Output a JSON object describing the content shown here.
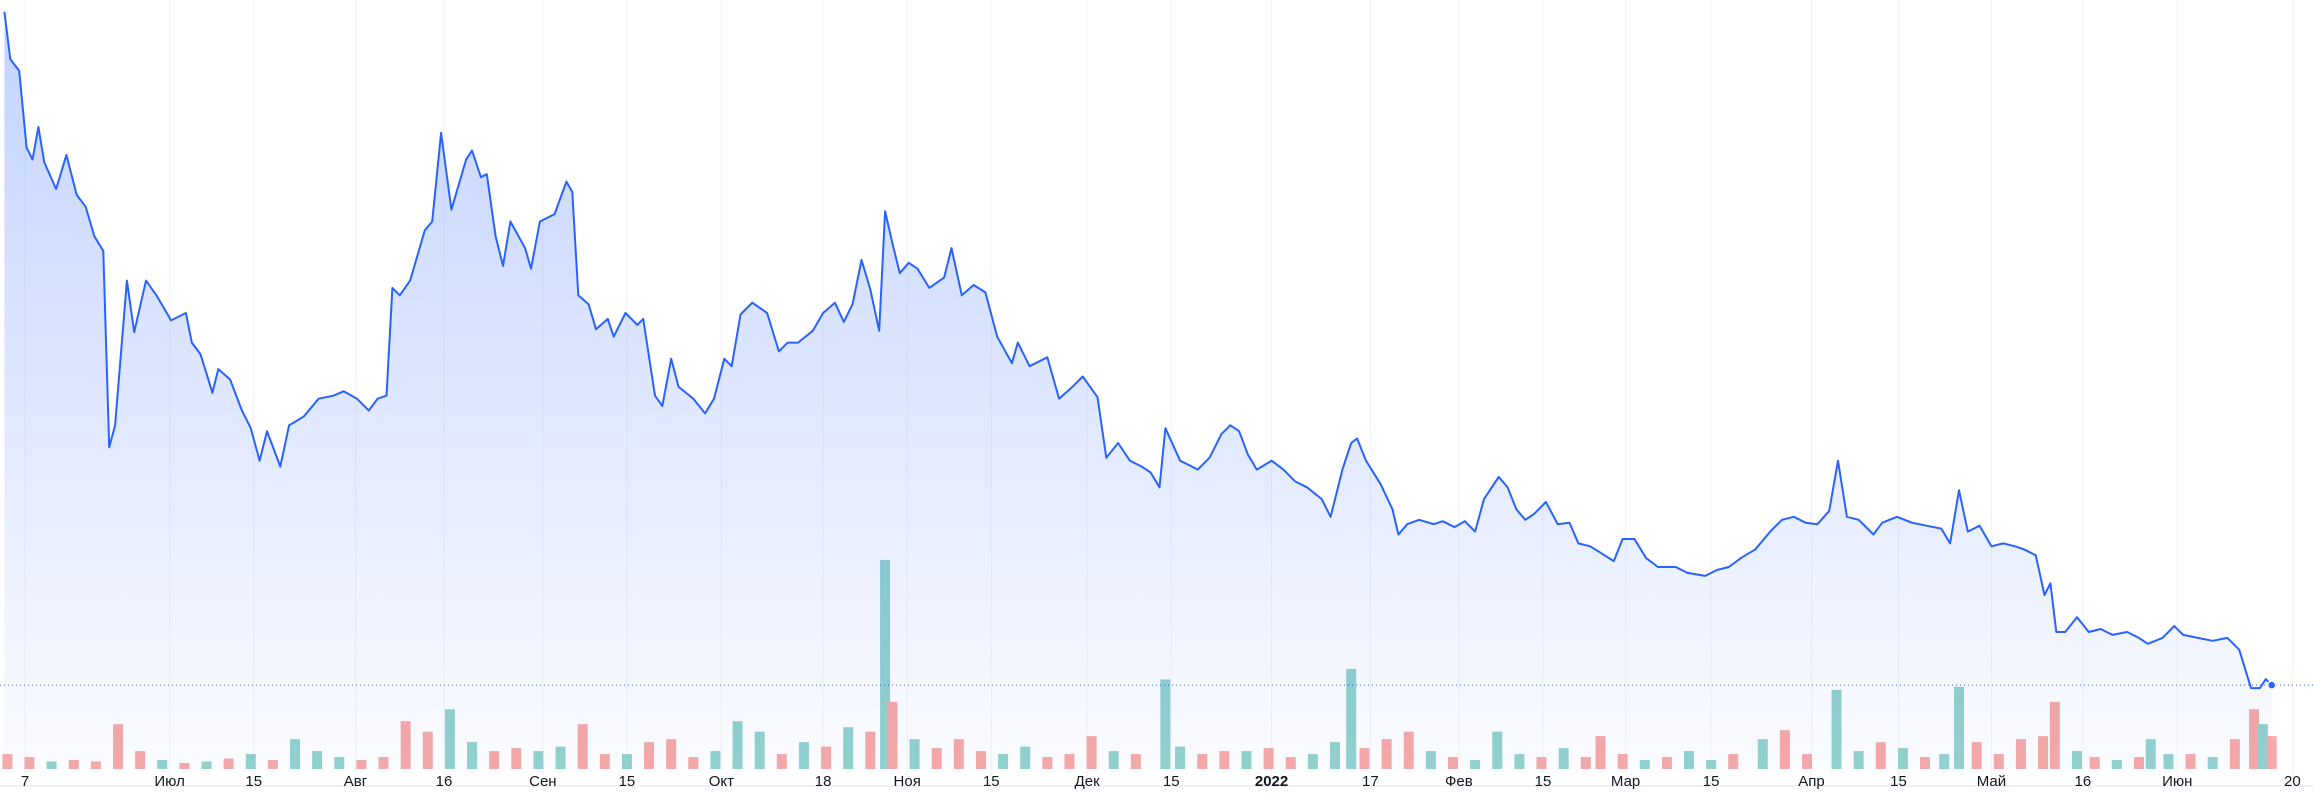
{
  "chart_data": [
    {
      "type": "line",
      "color": "#2962ff",
      "fill": "#2962ff",
      "last_price_line": true,
      "xlim": [
        0,
        1568
      ],
      "ylim": [
        -5,
        465
      ],
      "x": [
        3,
        7,
        13,
        18,
        22,
        26,
        30,
        38,
        45,
        52,
        58,
        64,
        70,
        74,
        78,
        86,
        91,
        99,
        106,
        116,
        126,
        130,
        136,
        144,
        148,
        156,
        164,
        170,
        176,
        181,
        190,
        196,
        206,
        216,
        226,
        233,
        242,
        250,
        256,
        262,
        266,
        271,
        278,
        288,
        293,
        299,
        306,
        316,
        320,
        326,
        330,
        336,
        341,
        346,
        356,
        360,
        366,
        376,
        384,
        388,
        392,
        399,
        404,
        412,
        416,
        424,
        432,
        436,
        444,
        449,
        455,
        460,
        470,
        478,
        484,
        491,
        496,
        502,
        510,
        520,
        528,
        534,
        541,
        551,
        558,
        566,
        572,
        578,
        584,
        590,
        596,
        600,
        605,
        610,
        616,
        622,
        630,
        640,
        645,
        652,
        660,
        668,
        676,
        686,
        690,
        698,
        710,
        718,
        727,
        734,
        744,
        750,
        758,
        766,
        774,
        780,
        786,
        790,
        800,
        806,
        812,
        820,
        828,
        834,
        840,
        846,
        852,
        862,
        870,
        878,
        886,
        896,
        902,
        910,
        916,
        920,
        926,
        936,
        944,
        948,
        954,
        962,
        972,
        978,
        986,
        993,
        1000,
        1006,
        1016,
        1022,
        1028,
        1034,
        1040,
        1048,
        1056,
        1064,
        1070,
        1078,
        1086,
        1094,
        1100,
        1108,
        1116,
        1124,
        1136,
        1144,
        1156,
        1164,
        1172,
        1180,
        1190,
        1200,
        1208,
        1216,
        1224,
        1232,
        1240,
        1246,
        1252,
        1260,
        1270,
        1276,
        1286,
        1296,
        1306,
        1316,
        1322,
        1328,
        1334,
        1342,
        1350,
        1358,
        1366,
        1372,
        1380,
        1386,
        1390,
        1394,
        1400,
        1408,
        1416,
        1424,
        1432,
        1442,
        1450,
        1456,
        1466,
        1474,
        1480,
        1490,
        1500,
        1510,
        1518,
        1526,
        1532,
        1536,
        1540
      ],
      "values": [
        457,
        425,
        417,
        365,
        357,
        379,
        355,
        337,
        360,
        333,
        325,
        305,
        295,
        162,
        177,
        275,
        240,
        275,
        265,
        248,
        253,
        233,
        225,
        199,
        215,
        208,
        187,
        175,
        153,
        173,
        149,
        177,
        183,
        195,
        197,
        200,
        195,
        187,
        195,
        197,
        270,
        265,
        275,
        309,
        315,
        375,
        323,
        357,
        363,
        345,
        347,
        305,
        285,
        315,
        297,
        283,
        315,
        320,
        342,
        335,
        265,
        259,
        242,
        249,
        237,
        253,
        245,
        249,
        197,
        190,
        222,
        203,
        195,
        185,
        195,
        222,
        217,
        252,
        260,
        253,
        227,
        233,
        233,
        241,
        253,
        260,
        247,
        259,
        289,
        269,
        241,
        322,
        300,
        280,
        287,
        283,
        270,
        277,
        297,
        265,
        272,
        267,
        237,
        219,
        233,
        217,
        223,
        195,
        203,
        210,
        196,
        155,
        165,
        153,
        149,
        145,
        135,
        175,
        153,
        150,
        147,
        155,
        171,
        177,
        173,
        157,
        147,
        153,
        147,
        139,
        135,
        127,
        115,
        147,
        165,
        168,
        153,
        137,
        120,
        103,
        110,
        113,
        110,
        112,
        108,
        112,
        105,
        127,
        142,
        135,
        120,
        113,
        117,
        125,
        110,
        111,
        97,
        95,
        90,
        85,
        100,
        100,
        87,
        81,
        81,
        77,
        75,
        79,
        81,
        87,
        93,
        105,
        113,
        115,
        111,
        110,
        119,
        153,
        115,
        113,
        103,
        111,
        115,
        111,
        109,
        107,
        97,
        133,
        105,
        109,
        95,
        97,
        95,
        93,
        89,
        62,
        70,
        37,
        37,
        47,
        37,
        39,
        35,
        37,
        33,
        29,
        33,
        41,
        35,
        33,
        31,
        33,
        25,
        -1,
        -1,
        5,
        1
      ]
    },
    {
      "type": "bar",
      "xlim": [
        0,
        1568
      ],
      "ylim": [
        0,
        150
      ],
      "emphasized_ticks": [
        13
      ],
      "x": [
        5,
        20,
        35,
        50,
        65,
        80,
        95,
        110,
        125,
        140,
        155,
        170,
        185,
        200,
        215,
        230,
        245,
        260,
        275,
        290,
        305,
        320,
        335,
        350,
        365,
        380,
        395,
        410,
        425,
        440,
        455,
        470,
        485,
        500,
        515,
        530,
        545,
        560,
        575,
        590,
        600,
        605,
        620,
        635,
        650,
        665,
        680,
        695,
        710,
        725,
        740,
        755,
        770,
        790,
        800,
        815,
        830,
        845,
        860,
        875,
        890,
        905,
        916,
        925,
        940,
        955,
        970,
        985,
        1000,
        1015,
        1030,
        1045,
        1060,
        1075,
        1085,
        1100,
        1115,
        1130,
        1145,
        1160,
        1175,
        1195,
        1210,
        1225,
        1245,
        1260,
        1275,
        1290,
        1305,
        1318,
        1328,
        1340,
        1355,
        1370,
        1385,
        1393,
        1408,
        1420,
        1435,
        1450,
        1458,
        1470,
        1485,
        1500,
        1515,
        1528,
        1534,
        1540
      ],
      "values": [
        10,
        8,
        5,
        6,
        5,
        30,
        12,
        6,
        4,
        5,
        7,
        10,
        6,
        20,
        12,
        8,
        6,
        8,
        32,
        25,
        40,
        18,
        12,
        14,
        12,
        15,
        30,
        10,
        10,
        18,
        20,
        8,
        12,
        32,
        25,
        10,
        18,
        15,
        28,
        25,
        140,
        45,
        20,
        14,
        20,
        12,
        10,
        15,
        8,
        10,
        22,
        12,
        10,
        60,
        15,
        10,
        12,
        12,
        14,
        8,
        10,
        18,
        67,
        14,
        20,
        25,
        12,
        8,
        6,
        25,
        10,
        8,
        14,
        8,
        22,
        10,
        6,
        8,
        12,
        6,
        10,
        20,
        26,
        10,
        53,
        12,
        18,
        14,
        8,
        10,
        55,
        18,
        10,
        20,
        22,
        45,
        12,
        8,
        6,
        8,
        20,
        10,
        10,
        8,
        20,
        40,
        30,
        22
      ],
      "colors": [
        "#f7a9a7",
        "#f7a9a7",
        "#92d2cc",
        "#f7a9a7",
        "#f7a9a7",
        "#f7a9a7",
        "#f7a9a7",
        "#92d2cc",
        "#f7a9a7",
        "#92d2cc",
        "#f7a9a7",
        "#92d2cc",
        "#f7a9a7",
        "#92d2cc",
        "#92d2cc",
        "#92d2cc",
        "#f7a9a7",
        "#f7a9a7",
        "#f7a9a7",
        "#f7a9a7",
        "#92d2cc",
        "#92d2cc",
        "#f7a9a7",
        "#f7a9a7",
        "#92d2cc",
        "#92d2cc",
        "#f7a9a7",
        "#f7a9a7",
        "#92d2cc",
        "#f7a9a7",
        "#f7a9a7",
        "#f7a9a7",
        "#92d2cc",
        "#92d2cc",
        "#92d2cc",
        "#f7a9a7",
        "#92d2cc",
        "#f7a9a7",
        "#92d2cc",
        "#f7a9a7",
        "#92d2cc",
        "#f7a9a7",
        "#92d2cc",
        "#f7a9a7",
        "#f7a9a7",
        "#f7a9a7",
        "#92d2cc",
        "#92d2cc",
        "#f7a9a7",
        "#f7a9a7",
        "#f7a9a7",
        "#92d2cc",
        "#f7a9a7",
        "#92d2cc",
        "#92d2cc",
        "#f7a9a7",
        "#f7a9a7",
        "#92d2cc",
        "#f7a9a7",
        "#f7a9a7",
        "#92d2cc",
        "#92d2cc",
        "#92d2cc",
        "#f7a9a7",
        "#f7a9a7",
        "#f7a9a7",
        "#92d2cc",
        "#f7a9a7",
        "#92d2cc",
        "#92d2cc",
        "#92d2cc",
        "#f7a9a7",
        "#92d2cc",
        "#f7a9a7",
        "#f7a9a7",
        "#f7a9a7",
        "#92d2cc",
        "#f7a9a7",
        "#92d2cc",
        "#92d2cc",
        "#f7a9a7",
        "#92d2cc",
        "#f7a9a7",
        "#f7a9a7",
        "#92d2cc",
        "#92d2cc",
        "#f7a9a7",
        "#92d2cc",
        "#f7a9a7",
        "#92d2cc",
        "#92d2cc",
        "#f7a9a7",
        "#f7a9a7",
        "#f7a9a7",
        "#f7a9a7",
        "#f7a9a7",
        "#92d2cc",
        "#f7a9a7",
        "#92d2cc",
        "#f7a9a7",
        "#92d2cc",
        "#92d2cc",
        "#f7a9a7",
        "#92d2cc",
        "#f7a9a7",
        "#f7a9a7",
        "#92d2cc",
        "#f7a9a7"
      ],
      "xticks": [
        {
          "value": 17,
          "label": "7"
        },
        {
          "value": 115,
          "label": "Июл"
        },
        {
          "value": 172,
          "label": "15"
        },
        {
          "value": 241,
          "label": "Авг"
        },
        {
          "value": 301,
          "label": "16"
        },
        {
          "value": 368,
          "label": "Сен"
        },
        {
          "value": 425,
          "label": "15"
        },
        {
          "value": 489,
          "label": "Окт"
        },
        {
          "value": 558,
          "label": "18"
        },
        {
          "value": 615,
          "label": "Ноя"
        },
        {
          "value": 672,
          "label": "15"
        },
        {
          "value": 737,
          "label": "Дек"
        },
        {
          "value": 794,
          "label": "15"
        },
        {
          "value": 862,
          "label": "2022"
        },
        {
          "value": 929,
          "label": "17"
        },
        {
          "value": 989,
          "label": "Фев"
        },
        {
          "value": 1046,
          "label": "15"
        },
        {
          "value": 1102,
          "label": "Мар"
        },
        {
          "value": 1160,
          "label": "15"
        },
        {
          "value": 1228,
          "label": "Апр"
        },
        {
          "value": 1287,
          "label": "15"
        },
        {
          "value": 1350,
          "label": "Май"
        },
        {
          "value": 1412,
          "label": "16"
        },
        {
          "value": 1476,
          "label": "Июн"
        },
        {
          "value": 1554,
          "label": "20"
        }
      ]
    }
  ]
}
